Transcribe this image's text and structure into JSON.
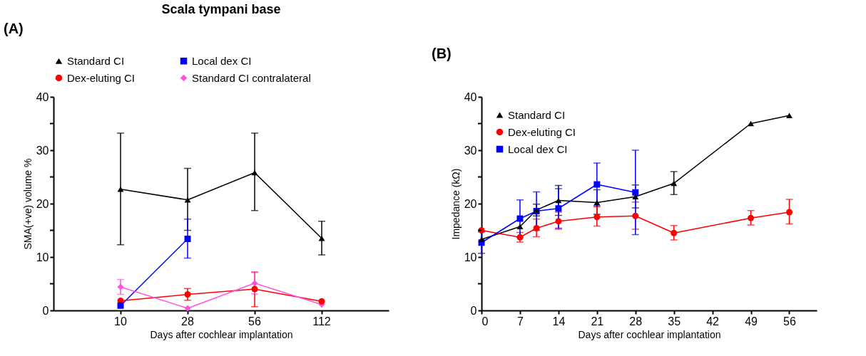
{
  "chart_data": [
    {
      "type": "line",
      "title": "Scala tympani base",
      "xlabel": "Days after cochlear implantation",
      "ylabel": "SMA(+ve) volume %",
      "annotations": [
        "(A)"
      ],
      "categories": [
        "10",
        "28",
        "56",
        "112"
      ],
      "ylim": [
        0,
        40
      ],
      "yticks": [
        0,
        {
          "value": 5,
          "label": null
        },
        10,
        {
          "value": 15,
          "label": null
        },
        20,
        {
          "value": 25,
          "label": null
        },
        30,
        {
          "value": 35,
          "label": null
        },
        40
      ],
      "grid": false,
      "legend": "top",
      "line_style": "solid",
      "series": [
        {
          "name": "Standard CI",
          "color": "#000000",
          "marker": "triangle",
          "values": [
            22.7,
            20.7,
            25.8,
            13.5
          ],
          "errors": [
            [
              12.3,
              33.2
            ],
            [
              15.0,
              26.6
            ],
            [
              18.7,
              33.2
            ],
            [
              10.4,
              16.7
            ]
          ]
        },
        {
          "name": "Local dex CI",
          "color": "#0000ff",
          "marker": "square",
          "values": [
            0.9,
            13.4,
            null,
            null
          ],
          "errors": [
            null,
            [
              9.8,
              17.1
            ],
            null,
            null
          ]
        },
        {
          "name": "Dex-eluting CI",
          "color": "#ff0000",
          "marker": "circle",
          "values": [
            1.8,
            3.0,
            4.0,
            1.7
          ],
          "errors": [
            null,
            [
              1.9,
              4.1
            ],
            [
              0.7,
              7.2
            ],
            null
          ]
        },
        {
          "name": "Standard CI contralateral",
          "color": "#ff55dd",
          "marker": "diamond",
          "values": [
            4.4,
            0.4,
            5.1,
            1.1
          ],
          "errors": [
            [
              3.0,
              5.8
            ],
            null,
            [
              3.1,
              7.1
            ],
            null
          ]
        }
      ]
    },
    {
      "type": "line",
      "xlabel": "Days after cochlear implantation",
      "ylabel": "Impedance (kΩ)",
      "annotations": [
        "(B)"
      ],
      "xlim": [
        0,
        61
      ],
      "xticks": [
        0,
        7,
        14,
        21,
        28,
        35,
        42,
        49,
        56
      ],
      "ylim": [
        0,
        40
      ],
      "yticks": [
        0,
        {
          "value": 5,
          "label": null
        },
        10,
        {
          "value": 15,
          "label": null
        },
        20,
        {
          "value": 25,
          "label": null
        },
        30,
        {
          "value": 35,
          "label": null
        },
        40
      ],
      "grid": false,
      "legend": "top left",
      "line_style": "solid",
      "series": [
        {
          "name": "Standard CI",
          "color": "#000000",
          "marker": "triangle",
          "x": [
            0,
            7,
            10,
            14,
            21,
            28,
            35,
            49,
            56
          ],
          "values": [
            13.3,
            15.7,
            18.8,
            20.6,
            20.2,
            21.3,
            23.8,
            35.0,
            36.5
          ],
          "errors": [
            null,
            null,
            1.1,
            [
              17.8,
              23.4
            ],
            [
              18.0,
              22.6
            ],
            [
              19.2,
              23.5
            ],
            [
              21.7,
              26.0
            ],
            null,
            null
          ]
        },
        {
          "name": "Dex-eluting CI",
          "color": "#ff0000",
          "marker": "circle",
          "x": [
            0,
            7,
            10,
            14,
            21,
            28,
            35,
            49,
            56
          ],
          "values": [
            15.0,
            13.7,
            15.4,
            16.7,
            17.5,
            17.7,
            14.5,
            17.3,
            18.4
          ],
          "errors": [
            null,
            [
              12.8,
              14.6
            ],
            [
              13.8,
              17.1
            ],
            [
              15.2,
              18.4
            ],
            [
              15.8,
              19.4
            ],
            [
              15.2,
              20.3
            ],
            [
              13.2,
              15.9
            ],
            [
              16.0,
              18.7
            ],
            [
              16.2,
              20.8
            ]
          ]
        },
        {
          "name": "Local dex CI",
          "color": "#0000ff",
          "marker": "square",
          "x": [
            0,
            7,
            10,
            14,
            21,
            28
          ],
          "values": [
            12.7,
            17.2,
            18.6,
            19.1,
            23.6,
            22.1
          ],
          "errors": [
            2.0,
            3.5,
            3.6,
            3.7,
            4.0,
            [
              14.2,
              30.0
            ]
          ]
        }
      ]
    }
  ]
}
